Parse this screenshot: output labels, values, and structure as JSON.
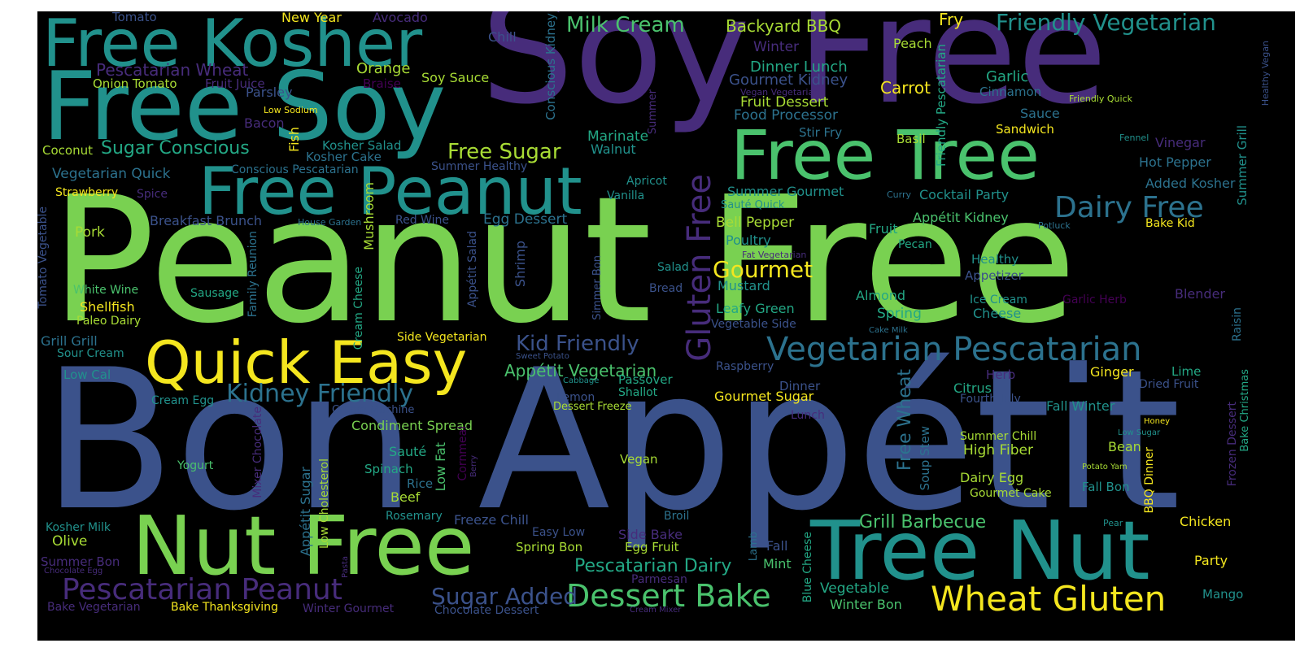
{
  "palette": {
    "background": "#000000",
    "yellow": "#f4e61f",
    "lime": "#a8dc35",
    "green": "#79d151",
    "emerald": "#4ac26d",
    "teal_green": "#23a885",
    "teal": "#21918c",
    "cyan_blue": "#2c728e",
    "blue": "#3b528b",
    "indigo": "#472c7b",
    "purple": "#440154"
  },
  "words": [
    {
      "text": "Peanut Free",
      "color": "green",
      "weight": 1.0
    },
    {
      "text": "Bon Appétit",
      "color": "blue",
      "weight": 1.0
    },
    {
      "text": "Soy Free",
      "color": "indigo",
      "weight": 0.8
    },
    {
      "text": "Free Soy",
      "color": "teal",
      "weight": 0.6
    },
    {
      "text": "Free Kosher",
      "color": "teal",
      "weight": 0.5
    },
    {
      "text": "Free Tree",
      "color": "emerald",
      "weight": 0.5
    },
    {
      "text": "Free Peanut",
      "color": "teal",
      "weight": 0.5
    },
    {
      "text": "Nut Free",
      "color": "green",
      "weight": 0.6
    },
    {
      "text": "Tree Nut",
      "color": "teal",
      "weight": 0.6
    },
    {
      "text": "Quick Easy",
      "color": "yellow",
      "weight": 0.5
    },
    {
      "text": "Vegetarian Pescatarian",
      "color": "cyan_blue",
      "weight": 0.3
    },
    {
      "text": "Gluten Free",
      "color": "indigo",
      "weight": 0.3
    },
    {
      "text": "Wheat Gluten",
      "color": "yellow",
      "weight": 0.3
    },
    {
      "text": "Dessert Bake",
      "color": "emerald",
      "weight": 0.3
    },
    {
      "text": "Pescatarian Peanut",
      "color": "indigo",
      "weight": 0.3
    },
    {
      "text": "Dairy Free",
      "color": "cyan_blue",
      "weight": 0.3
    },
    {
      "text": "Kidney Friendly",
      "color": "cyan_blue",
      "weight": 0.2
    },
    {
      "text": "Sugar Added",
      "color": "blue",
      "weight": 0.2
    },
    {
      "text": "Friendly Vegetarian",
      "color": "teal",
      "weight": 0.2
    },
    {
      "text": "Milk Cream",
      "color": "emerald",
      "weight": 0.2
    },
    {
      "text": "Free Sugar",
      "color": "lime",
      "weight": 0.2
    },
    {
      "text": "Sugar Conscious",
      "color": "teal_green",
      "weight": 0.2
    },
    {
      "text": "Gourmet",
      "color": "yellow",
      "weight": 0.2
    },
    {
      "text": "Kid Friendly",
      "color": "blue",
      "weight": 0.2
    },
    {
      "text": "Grill Barbecue",
      "color": "emerald",
      "weight": 0.2
    },
    {
      "text": "Pescatarian Dairy",
      "color": "teal_green",
      "weight": 0.2
    },
    {
      "text": "Appétit Vegetarian",
      "color": "emerald",
      "weight": 0.2
    },
    {
      "text": "Free Wheat",
      "color": "cyan_blue",
      "weight": 0.2
    },
    {
      "text": "Backyard BBQ",
      "color": "lime",
      "weight": 0.15
    },
    {
      "text": "Carrot",
      "color": "yellow",
      "weight": 0.15
    },
    {
      "text": "Fry",
      "color": "yellow",
      "weight": 0.15
    },
    {
      "text": "Peach",
      "color": "lime",
      "weight": 0.1
    },
    {
      "text": "Tomato",
      "color": "blue",
      "weight": 0.1
    },
    {
      "text": "New Year",
      "color": "yellow",
      "weight": 0.1
    },
    {
      "text": "Avocado",
      "color": "indigo",
      "weight": 0.1
    },
    {
      "text": "Chill",
      "color": "blue",
      "weight": 0.1
    },
    {
      "text": "Conscious Kidney",
      "color": "cyan_blue",
      "weight": 0.1
    },
    {
      "text": "Winter",
      "color": "indigo",
      "weight": 0.1
    },
    {
      "text": "Dinner Lunch",
      "color": "teal_green",
      "weight": 0.1
    },
    {
      "text": "Gourmet Kidney",
      "color": "blue",
      "weight": 0.1
    },
    {
      "text": "Garlic",
      "color": "teal_green",
      "weight": 0.1
    },
    {
      "text": "Cinnamon",
      "color": "cyan_blue",
      "weight": 0.1
    },
    {
      "text": "Vegan Vegetarian",
      "color": "indigo",
      "weight": 0.05
    },
    {
      "text": "Friendly Quick",
      "color": "lime",
      "weight": 0.05
    },
    {
      "text": "Healthy Vegan",
      "color": "blue",
      "weight": 0.05
    },
    {
      "text": "Pescatarian Wheat",
      "color": "indigo",
      "weight": 0.1
    },
    {
      "text": "Orange",
      "color": "lime",
      "weight": 0.1
    },
    {
      "text": "Onion Tomato",
      "color": "lime",
      "weight": 0.1
    },
    {
      "text": "Fruit Juice",
      "color": "indigo",
      "weight": 0.1
    },
    {
      "text": "Braise",
      "color": "purple",
      "weight": 0.1
    },
    {
      "text": "Soy Sauce",
      "color": "lime",
      "weight": 0.1
    },
    {
      "text": "Parsley",
      "color": "blue",
      "weight": 0.1
    },
    {
      "text": "Low Sodium",
      "color": "yellow",
      "weight": 0.05
    },
    {
      "text": "Summer",
      "color": "indigo",
      "weight": 0.05
    },
    {
      "text": "Fruit Dessert",
      "color": "lime",
      "weight": 0.1
    },
    {
      "text": "Food Processor",
      "color": "cyan_blue",
      "weight": 0.1
    },
    {
      "text": "Sauce",
      "color": "cyan_blue",
      "weight": 0.1
    },
    {
      "text": "Sandwich",
      "color": "yellow",
      "weight": 0.1
    },
    {
      "text": "Bacon",
      "color": "indigo",
      "weight": 0.1
    },
    {
      "text": "Fish",
      "color": "yellow",
      "weight": 0.1
    },
    {
      "text": "Kosher Salad",
      "color": "teal",
      "weight": 0.1
    },
    {
      "text": "Kosher Cake",
      "color": "cyan_blue",
      "weight": 0.1
    },
    {
      "text": "Marinate",
      "color": "teal_green",
      "weight": 0.1
    },
    {
      "text": "Stir Fry",
      "color": "cyan_blue",
      "weight": 0.1
    },
    {
      "text": "Basil",
      "color": "lime",
      "weight": 0.1
    },
    {
      "text": "Fennel",
      "color": "teal",
      "weight": 0.05
    },
    {
      "text": "Vinegar",
      "color": "indigo",
      "weight": 0.1
    },
    {
      "text": "Friendly Pescatarian",
      "color": "teal_green",
      "weight": 0.1
    },
    {
      "text": "Summer Grill",
      "color": "teal",
      "weight": 0.1
    },
    {
      "text": "Coconut",
      "color": "lime",
      "weight": 0.1
    },
    {
      "text": "Walnut",
      "color": "teal",
      "weight": 0.1
    },
    {
      "text": "Vegetarian Quick",
      "color": "cyan_blue",
      "weight": 0.1
    },
    {
      "text": "Conscious Pescatarian",
      "color": "cyan_blue",
      "weight": 0.1
    },
    {
      "text": "Summer Healthy",
      "color": "blue",
      "weight": 0.1
    },
    {
      "text": "Hot Pepper",
      "color": "cyan_blue",
      "weight": 0.1
    },
    {
      "text": "Apricot",
      "color": "teal",
      "weight": 0.1
    },
    {
      "text": "Vanilla",
      "color": "teal",
      "weight": 0.1
    },
    {
      "text": "Summer Gourmet",
      "color": "teal",
      "weight": 0.1
    },
    {
      "text": "Added Kosher",
      "color": "cyan_blue",
      "weight": 0.1
    },
    {
      "text": "Curry",
      "color": "cyan_blue",
      "weight": 0.05
    },
    {
      "text": "Cocktail Party",
      "color": "teal",
      "weight": 0.1
    },
    {
      "text": "Strawberry",
      "color": "yellow",
      "weight": 0.1
    },
    {
      "text": "Spice",
      "color": "indigo",
      "weight": 0.1
    },
    {
      "text": "Sauté Quick",
      "color": "teal",
      "weight": 0.1
    },
    {
      "text": "Appétit Kidney",
      "color": "emerald",
      "weight": 0.1
    },
    {
      "text": "Potluck",
      "color": "cyan_blue",
      "weight": 0.05
    },
    {
      "text": "Bake Kid",
      "color": "yellow",
      "weight": 0.1
    },
    {
      "text": "Tomato Vegetable",
      "color": "blue",
      "weight": 0.1
    },
    {
      "text": "Breakfast Brunch",
      "color": "blue",
      "weight": 0.1
    },
    {
      "text": "House Garden",
      "color": "cyan_blue",
      "weight": 0.05
    },
    {
      "text": "Red Wine",
      "color": "blue",
      "weight": 0.1
    },
    {
      "text": "Egg Dessert",
      "color": "cyan_blue",
      "weight": 0.1
    },
    {
      "text": "Mushroom",
      "color": "lime",
      "weight": 0.1
    },
    {
      "text": "Bell Pepper",
      "color": "lime",
      "weight": 0.1
    },
    {
      "text": "Fruit",
      "color": "teal_green",
      "weight": 0.1
    },
    {
      "text": "Pecan",
      "color": "teal_green",
      "weight": 0.1
    },
    {
      "text": "Pork",
      "color": "lime",
      "weight": 0.1
    },
    {
      "text": "Family Reunion",
      "color": "cyan_blue",
      "weight": 0.1
    },
    {
      "text": "Appétit Salad",
      "color": "blue",
      "weight": 0.1
    },
    {
      "text": "Shrimp",
      "color": "blue",
      "weight": 0.1
    },
    {
      "text": "Poultry",
      "color": "teal",
      "weight": 0.1
    },
    {
      "text": "Fat Vegetarian",
      "color": "indigo",
      "weight": 0.05
    },
    {
      "text": "Healthy",
      "color": "teal",
      "weight": 0.1
    },
    {
      "text": "Salad",
      "color": "teal",
      "weight": 0.1
    },
    {
      "text": "Mustard",
      "color": "teal",
      "weight": 0.1
    },
    {
      "text": "Simmer Bon",
      "color": "blue",
      "weight": 0.1
    },
    {
      "text": "Appetizer",
      "color": "blue",
      "weight": 0.1
    },
    {
      "text": "White Wine",
      "color": "emerald",
      "weight": 0.1
    },
    {
      "text": "Sausage",
      "color": "teal_green",
      "weight": 0.1
    },
    {
      "text": "Cream Cheese",
      "color": "teal_green",
      "weight": 0.1
    },
    {
      "text": "Bread",
      "color": "blue",
      "weight": 0.1
    },
    {
      "text": "Almond",
      "color": "teal_green",
      "weight": 0.1
    },
    {
      "text": "Blender",
      "color": "indigo",
      "weight": 0.1
    },
    {
      "text": "Shellfish",
      "color": "yellow",
      "weight": 0.1
    },
    {
      "text": "Leafy Green",
      "color": "teal_green",
      "weight": 0.1
    },
    {
      "text": "Ice Cream",
      "color": "teal",
      "weight": 0.1
    },
    {
      "text": "Garlic Herb",
      "color": "purple",
      "weight": 0.1
    },
    {
      "text": "Paleo Dairy",
      "color": "lime",
      "weight": 0.1
    },
    {
      "text": "Spring",
      "color": "teal_green",
      "weight": 0.1
    },
    {
      "text": "Cheese",
      "color": "teal",
      "weight": 0.1
    },
    {
      "text": "Vegetable Side",
      "color": "blue",
      "weight": 0.1
    },
    {
      "text": "Cake Milk",
      "color": "cyan_blue",
      "weight": 0.05
    },
    {
      "text": "Raisin",
      "color": "cyan_blue",
      "weight": 0.1
    },
    {
      "text": "Grill Grill",
      "color": "cyan_blue",
      "weight": 0.1
    },
    {
      "text": "Side Vegetarian",
      "color": "yellow",
      "weight": 0.1
    },
    {
      "text": "Sour Cream",
      "color": "teal",
      "weight": 0.1
    },
    {
      "text": "Sweet Potato",
      "color": "blue",
      "weight": 0.05
    },
    {
      "text": "Raspberry",
      "color": "blue",
      "weight": 0.1
    },
    {
      "text": "Dinner",
      "color": "blue",
      "weight": 0.1
    },
    {
      "text": "Herb",
      "color": "indigo",
      "weight": 0.1
    },
    {
      "text": "Ginger",
      "color": "yellow",
      "weight": 0.1
    },
    {
      "text": "Lime",
      "color": "teal_green",
      "weight": 0.1
    },
    {
      "text": "Citrus",
      "color": "teal_green",
      "weight": 0.1
    },
    {
      "text": "Dried Fruit",
      "color": "blue",
      "weight": 0.1
    },
    {
      "text": "Bake Christmas",
      "color": "teal_green",
      "weight": 0.1
    },
    {
      "text": "Low Cal",
      "color": "teal",
      "weight": 0.1
    },
    {
      "text": "Cabbage",
      "color": "teal",
      "weight": 0.05
    },
    {
      "text": "Passover",
      "color": "teal_green",
      "weight": 0.1
    },
    {
      "text": "Shallot",
      "color": "teal_green",
      "weight": 0.1
    },
    {
      "text": "Gourmet Sugar",
      "color": "yellow",
      "weight": 0.1
    },
    {
      "text": "Fourth July",
      "color": "blue",
      "weight": 0.1
    },
    {
      "text": "Fall Winter",
      "color": "teal",
      "weight": 0.1
    },
    {
      "text": "Frozen Dessert",
      "color": "indigo",
      "weight": 0.1
    },
    {
      "text": "Cream Egg",
      "color": "teal",
      "weight": 0.1
    },
    {
      "text": "Cream Machine",
      "color": "blue",
      "weight": 0.1
    },
    {
      "text": "Lemon",
      "color": "blue",
      "weight": 0.1
    },
    {
      "text": "Dessert Freeze",
      "color": "lime",
      "weight": 0.1
    },
    {
      "text": "Lunch",
      "color": "indigo",
      "weight": 0.1
    },
    {
      "text": "Honey",
      "color": "yellow",
      "weight": 0.05
    },
    {
      "text": "Condiment Spread",
      "color": "green",
      "weight": 0.1
    },
    {
      "text": "Mixer Chocolate",
      "color": "indigo",
      "weight": 0.1
    },
    {
      "text": "Cornmeal",
      "color": "purple",
      "weight": 0.1
    },
    {
      "text": "Summer Chill",
      "color": "lime",
      "weight": 0.1
    },
    {
      "text": "Low Sugar",
      "color": "teal",
      "weight": 0.05
    },
    {
      "text": "Soup Stew",
      "color": "cyan_blue",
      "weight": 0.1
    },
    {
      "text": "Sauté",
      "color": "teal_green",
      "weight": 0.1
    },
    {
      "text": "Low Fat",
      "color": "emerald",
      "weight": 0.1
    },
    {
      "text": "High Fiber",
      "color": "lime",
      "weight": 0.1
    },
    {
      "text": "Bean",
      "color": "lime",
      "weight": 0.1
    },
    {
      "text": "BBQ Dinner",
      "color": "yellow",
      "weight": 0.1
    },
    {
      "text": "Yogurt",
      "color": "emerald",
      "weight": 0.1
    },
    {
      "text": "Spinach",
      "color": "teal_green",
      "weight": 0.1
    },
    {
      "text": "Berry",
      "color": "indigo",
      "weight": 0.05
    },
    {
      "text": "Vegan",
      "color": "lime",
      "weight": 0.1
    },
    {
      "text": "Potato Yam",
      "color": "lime",
      "weight": 0.05
    },
    {
      "text": "Dairy Egg",
      "color": "lime",
      "weight": 0.1
    },
    {
      "text": "Rice",
      "color": "cyan_blue",
      "weight": 0.1
    },
    {
      "text": "Appétit Sugar",
      "color": "cyan_blue",
      "weight": 0.1
    },
    {
      "text": "Low Cholesterol",
      "color": "lime",
      "weight": 0.1
    },
    {
      "text": "Fall Bon",
      "color": "teal",
      "weight": 0.1
    },
    {
      "text": "Beef",
      "color": "lime",
      "weight": 0.1
    },
    {
      "text": "Gourmet Cake",
      "color": "lime",
      "weight": 0.1
    },
    {
      "text": "Rosemary",
      "color": "teal",
      "weight": 0.1
    },
    {
      "text": "Freeze Chill",
      "color": "blue",
      "weight": 0.1
    },
    {
      "text": "Broil",
      "color": "cyan_blue",
      "weight": 0.1
    },
    {
      "text": "Kosher Milk",
      "color": "teal",
      "weight": 0.1
    },
    {
      "text": "Easy Low",
      "color": "blue",
      "weight": 0.1
    },
    {
      "text": "Pear",
      "color": "teal",
      "weight": 0.05
    },
    {
      "text": "Chicken",
      "color": "yellow",
      "weight": 0.1
    },
    {
      "text": "Olive",
      "color": "lime",
      "weight": 0.1
    },
    {
      "text": "Side Bake",
      "color": "indigo",
      "weight": 0.1
    },
    {
      "text": "Lamb",
      "color": "cyan_blue",
      "weight": 0.1
    },
    {
      "text": "Fall",
      "color": "blue",
      "weight": 0.1
    },
    {
      "text": "Summer Bon",
      "color": "indigo",
      "weight": 0.1
    },
    {
      "text": "Spring Bon",
      "color": "lime",
      "weight": 0.1
    },
    {
      "text": "Egg Fruit",
      "color": "lime",
      "weight": 0.1
    },
    {
      "text": "Mint",
      "color": "emerald",
      "weight": 0.1
    },
    {
      "text": "Chocolate Egg",
      "color": "indigo",
      "weight": 0.05
    },
    {
      "text": "Pasta",
      "color": "indigo",
      "weight": 0.05
    },
    {
      "text": "Blue Cheese",
      "color": "teal_green",
      "weight": 0.1
    },
    {
      "text": "Party",
      "color": "yellow",
      "weight": 0.1
    },
    {
      "text": "Parmesan",
      "color": "indigo",
      "weight": 0.1
    },
    {
      "text": "Vegetable",
      "color": "teal_green",
      "weight": 0.1
    },
    {
      "text": "Mango",
      "color": "teal",
      "weight": 0.1
    },
    {
      "text": "Bake Vegetarian",
      "color": "indigo",
      "weight": 0.1
    },
    {
      "text": "Bake Thanksgiving",
      "color": "yellow",
      "weight": 0.1
    },
    {
      "text": "Winter Gourmet",
      "color": "indigo",
      "weight": 0.1
    },
    {
      "text": "Chocolate Dessert",
      "color": "blue",
      "weight": 0.1
    },
    {
      "text": "Cream Mixer",
      "color": "indigo",
      "weight": 0.05
    },
    {
      "text": "Winter Bon",
      "color": "emerald",
      "weight": 0.1
    }
  ]
}
